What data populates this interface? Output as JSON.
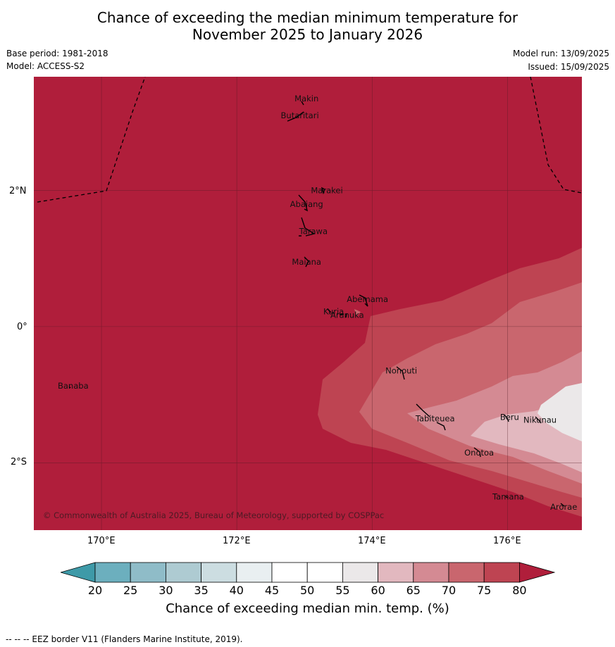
{
  "title": {
    "line1": "Chance of exceeding the median minimum temperature for",
    "line2": "November 2025 to January 2026"
  },
  "meta": {
    "base_period": "Base period: 1981-2018",
    "model": "Model: ACCESS-S2",
    "model_run": "Model run: 13/09/2025",
    "issued": "Issued: 15/09/2025"
  },
  "map": {
    "background_color": "#b01e3b",
    "extent": {
      "lon_min": 169.0,
      "lon_max": 177.1,
      "lat_min": -2.99,
      "lat_max": 3.67
    },
    "lat_ticks": [
      {
        "value": 2,
        "label": "2°N"
      },
      {
        "value": 0,
        "label": "0°"
      },
      {
        "value": -2,
        "label": "2°S"
      }
    ],
    "lon_ticks": [
      {
        "value": 170,
        "label": "170°E"
      },
      {
        "value": 172,
        "label": "172°E"
      },
      {
        "value": 174,
        "label": "174°E"
      },
      {
        "value": 176,
        "label": "176°E"
      }
    ],
    "islands": [
      {
        "name": "Makin",
        "lon": 173.0,
        "lat": 3.35
      },
      {
        "name": "Butaritari",
        "lon": 172.9,
        "lat": 3.1
      },
      {
        "name": "Marakei",
        "lon": 173.3,
        "lat": 2.0
      },
      {
        "name": "Abaiang",
        "lon": 173.0,
        "lat": 1.8
      },
      {
        "name": "Tarawa",
        "lon": 173.1,
        "lat": 1.4
      },
      {
        "name": "Maiana",
        "lon": 173.0,
        "lat": 0.95
      },
      {
        "name": "Abemama",
        "lon": 173.9,
        "lat": 0.4
      },
      {
        "name": "Kuria",
        "lon": 173.4,
        "lat": 0.22
      },
      {
        "name": "Aranuka",
        "lon": 173.6,
        "lat": 0.17
      },
      {
        "name": "Nonouti",
        "lon": 174.4,
        "lat": -0.65
      },
      {
        "name": "Banaba",
        "lon": 169.55,
        "lat": -0.87
      },
      {
        "name": "Tabiteuea",
        "lon": 174.9,
        "lat": -1.35
      },
      {
        "name": "Beru",
        "lon": 176.0,
        "lat": -1.33
      },
      {
        "name": "Nikunau",
        "lon": 176.45,
        "lat": -1.37
      },
      {
        "name": "Onotoa",
        "lon": 175.55,
        "lat": -1.85
      },
      {
        "name": "Tamana",
        "lon": 175.98,
        "lat": -2.5
      },
      {
        "name": "Arorae",
        "lon": 176.8,
        "lat": -2.65
      }
    ],
    "copyright": "© Commonwealth of Australia 2025, Bureau of Meteorology, supported by COSPPac"
  },
  "colorbar": {
    "label": "Chance of exceeding median min. temp. (%)",
    "ticks": [
      "20",
      "25",
      "30",
      "35",
      "40",
      "45",
      "50",
      "55",
      "60",
      "65",
      "70",
      "75",
      "80"
    ],
    "colors": [
      "#3e9aa8",
      "#6cafbe",
      "#8fbcc8",
      "#aecbd2",
      "#ccdde1",
      "#e9eff1",
      "#ffffff",
      "#ffffff",
      "#ebe8e9",
      "#e2b8bf",
      "#d48a93",
      "#c9666e",
      "#be4452",
      "#b01e3b"
    ]
  },
  "footer": "--  --  -- EEZ border V11 (Flanders Marine Institute, 2019)."
}
